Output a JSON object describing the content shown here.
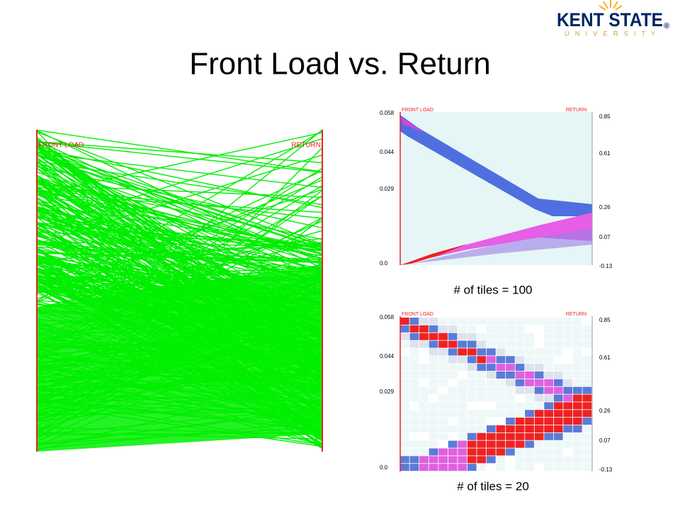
{
  "header": {
    "title": "Front Load vs. Return",
    "logo": {
      "name": "KENT STATE",
      "registered": "®",
      "sub": "U N I V E R S I T Y"
    }
  },
  "panels": [
    {
      "axes": [
        "FRONT LOAD",
        "RETURN"
      ]
    },
    {
      "axes": [
        "FRONT LOAD",
        "RETURN"
      ],
      "left_ticks": [
        "0.058",
        "0.044",
        "0.029",
        "0.0"
      ],
      "right_ticks": [
        "0.85",
        "0.61",
        "0.26",
        "0.07",
        "-0.13"
      ],
      "caption": "# of tiles = 100"
    },
    {
      "axes": [
        "FRONT LOAD",
        "RETURN"
      ],
      "left_ticks": [
        "0.058",
        "0.044",
        "0.029",
        "0.0"
      ],
      "right_ticks": [
        "0.85",
        "0.61",
        "0.26",
        "0.07",
        "-0.13"
      ],
      "caption": "# of tiles = 20"
    }
  ]
}
